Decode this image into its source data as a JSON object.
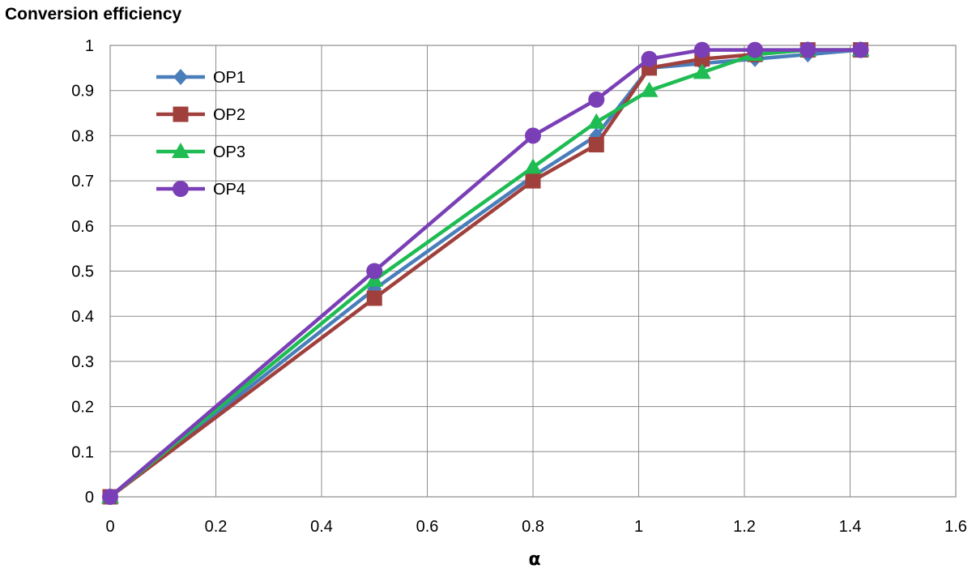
{
  "chart_data": {
    "type": "line",
    "title": "",
    "ylabel": "Conversion efficiency",
    "xlabel": "α",
    "xlim": [
      0,
      1.6
    ],
    "ylim": [
      0,
      1
    ],
    "x_ticks": [
      "0",
      "0.2",
      "0.4",
      "0.6",
      "0.8",
      "1",
      "1.2",
      "1.4",
      "1.6"
    ],
    "y_ticks": [
      "0",
      "0.1",
      "0.2",
      "0.3",
      "0.4",
      "0.5",
      "0.6",
      "0.7",
      "0.8",
      "0.9",
      "1"
    ],
    "grid": true,
    "legend_position": "top-left",
    "series": [
      {
        "name": "OP1",
        "color": "#4a7ebb",
        "marker": "diamond",
        "x": [
          0,
          0.5,
          0.8,
          0.92,
          1.02,
          1.12,
          1.22,
          1.32,
          1.42
        ],
        "y": [
          0,
          0.46,
          0.71,
          0.8,
          0.95,
          0.96,
          0.97,
          0.98,
          0.99
        ]
      },
      {
        "name": "OP2",
        "color": "#a0403c",
        "marker": "square",
        "x": [
          0,
          0.5,
          0.8,
          0.92,
          1.02,
          1.12,
          1.22,
          1.32,
          1.42
        ],
        "y": [
          0,
          0.44,
          0.7,
          0.78,
          0.95,
          0.97,
          0.98,
          0.99,
          0.99
        ]
      },
      {
        "name": "OP3",
        "color": "#1ebc52",
        "marker": "triangle",
        "x": [
          0,
          0.5,
          0.8,
          0.92,
          1.02,
          1.12,
          1.22,
          1.32,
          1.42
        ],
        "y": [
          0,
          0.48,
          0.73,
          0.83,
          0.9,
          0.94,
          0.98,
          0.99,
          0.99
        ]
      },
      {
        "name": "OP4",
        "color": "#7a3fb6",
        "marker": "circle",
        "x": [
          0,
          0.5,
          0.8,
          0.92,
          1.02,
          1.12,
          1.22,
          1.32,
          1.42
        ],
        "y": [
          0,
          0.5,
          0.8,
          0.88,
          0.97,
          0.99,
          0.99,
          0.99,
          0.99
        ]
      }
    ]
  }
}
